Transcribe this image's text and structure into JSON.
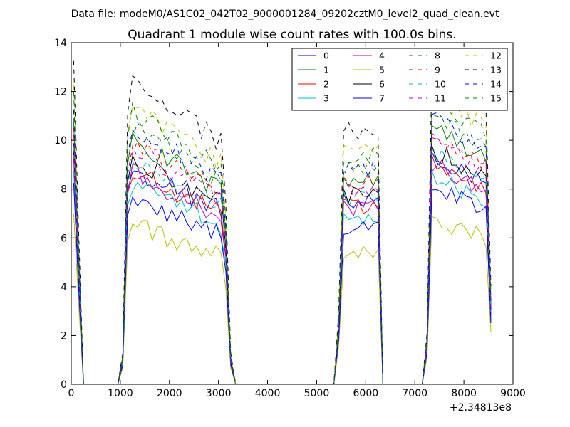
{
  "chart_data": {
    "type": "line",
    "suptitle": "Data file: modeM0/AS1C02_042T02_9000001284_09202cztM0_level2_quad_clean.evt",
    "title": "Quadrant 1 module wise count rates with 100.0s bins.",
    "xlabel": "",
    "ylabel": "",
    "x_offset_label": "+2.34813e8",
    "xlim": [
      0,
      9000
    ],
    "ylim": [
      0,
      14
    ],
    "x_ticks": [
      0,
      1000,
      2000,
      3000,
      4000,
      5000,
      6000,
      7000,
      8000,
      9000
    ],
    "y_ticks": [
      0,
      2,
      4,
      6,
      8,
      10,
      12,
      14
    ],
    "x_tick_labels": [
      "0",
      "1000",
      "2000",
      "3000",
      "4000",
      "5000",
      "6000",
      "7000",
      "8000",
      "9000"
    ],
    "y_tick_labels": [
      "0",
      "2",
      "4",
      "6",
      "8",
      "10",
      "12",
      "14"
    ],
    "grid": false,
    "legend_position": "top-right",
    "series": [
      {
        "name": "0",
        "color": "#0000ff",
        "dashed": false,
        "base": 7.6,
        "slope": -0.35
      },
      {
        "name": "1",
        "color": "#008000",
        "dashed": false,
        "base": 8.6,
        "slope": -0.3
      },
      {
        "name": "2",
        "color": "#ff0000",
        "dashed": false,
        "base": 7.5,
        "slope": -0.25
      },
      {
        "name": "3",
        "color": "#00bfbf",
        "dashed": false,
        "base": 7.0,
        "slope": -0.3
      },
      {
        "name": "4",
        "color": "#bf00bf",
        "dashed": false,
        "base": 7.4,
        "slope": -0.3
      },
      {
        "name": "5",
        "color": "#bfbf00",
        "dashed": false,
        "base": 5.6,
        "slope": -0.3
      },
      {
        "name": "6",
        "color": "#000000",
        "dashed": false,
        "base": 7.9,
        "slope": -0.3
      },
      {
        "name": "7",
        "color": "#0000ff",
        "dashed": false,
        "base": 6.6,
        "slope": -0.35
      },
      {
        "name": "8",
        "color": "#008000",
        "dashed": true,
        "base": 9.0,
        "slope": -0.3
      },
      {
        "name": "9",
        "color": "#ff0000",
        "dashed": true,
        "base": 8.4,
        "slope": -0.3
      },
      {
        "name": "10",
        "color": "#00bfbf",
        "dashed": true,
        "base": 7.8,
        "slope": -0.3
      },
      {
        "name": "11",
        "color": "#bf00bf",
        "dashed": true,
        "base": 8.2,
        "slope": -0.3
      },
      {
        "name": "12",
        "color": "#bfbf00",
        "dashed": true,
        "base": 9.8,
        "slope": -0.3
      },
      {
        "name": "13",
        "color": "#000000",
        "dashed": true,
        "base": 10.6,
        "slope": -0.3
      },
      {
        "name": "14",
        "color": "#0000ff",
        "dashed": true,
        "base": 9.0,
        "slope": -0.3
      },
      {
        "name": "15",
        "color": "#008000",
        "dashed": true,
        "base": 9.6,
        "slope": -0.3
      }
    ],
    "segments": [
      {
        "x_start": 50,
        "x_end": 1050,
        "peak_scale": 1.0,
        "profile": "spike_then_zero"
      },
      {
        "x_start": 1050,
        "x_end": 3150,
        "peak_scale": 1.0,
        "profile": "plateau"
      },
      {
        "x_start": 5450,
        "x_end": 6250,
        "peak_scale": 0.95,
        "profile": "plateau"
      },
      {
        "x_start": 7350,
        "x_end": 8550,
        "peak_scale": 1.1,
        "profile": "plateau"
      }
    ]
  }
}
